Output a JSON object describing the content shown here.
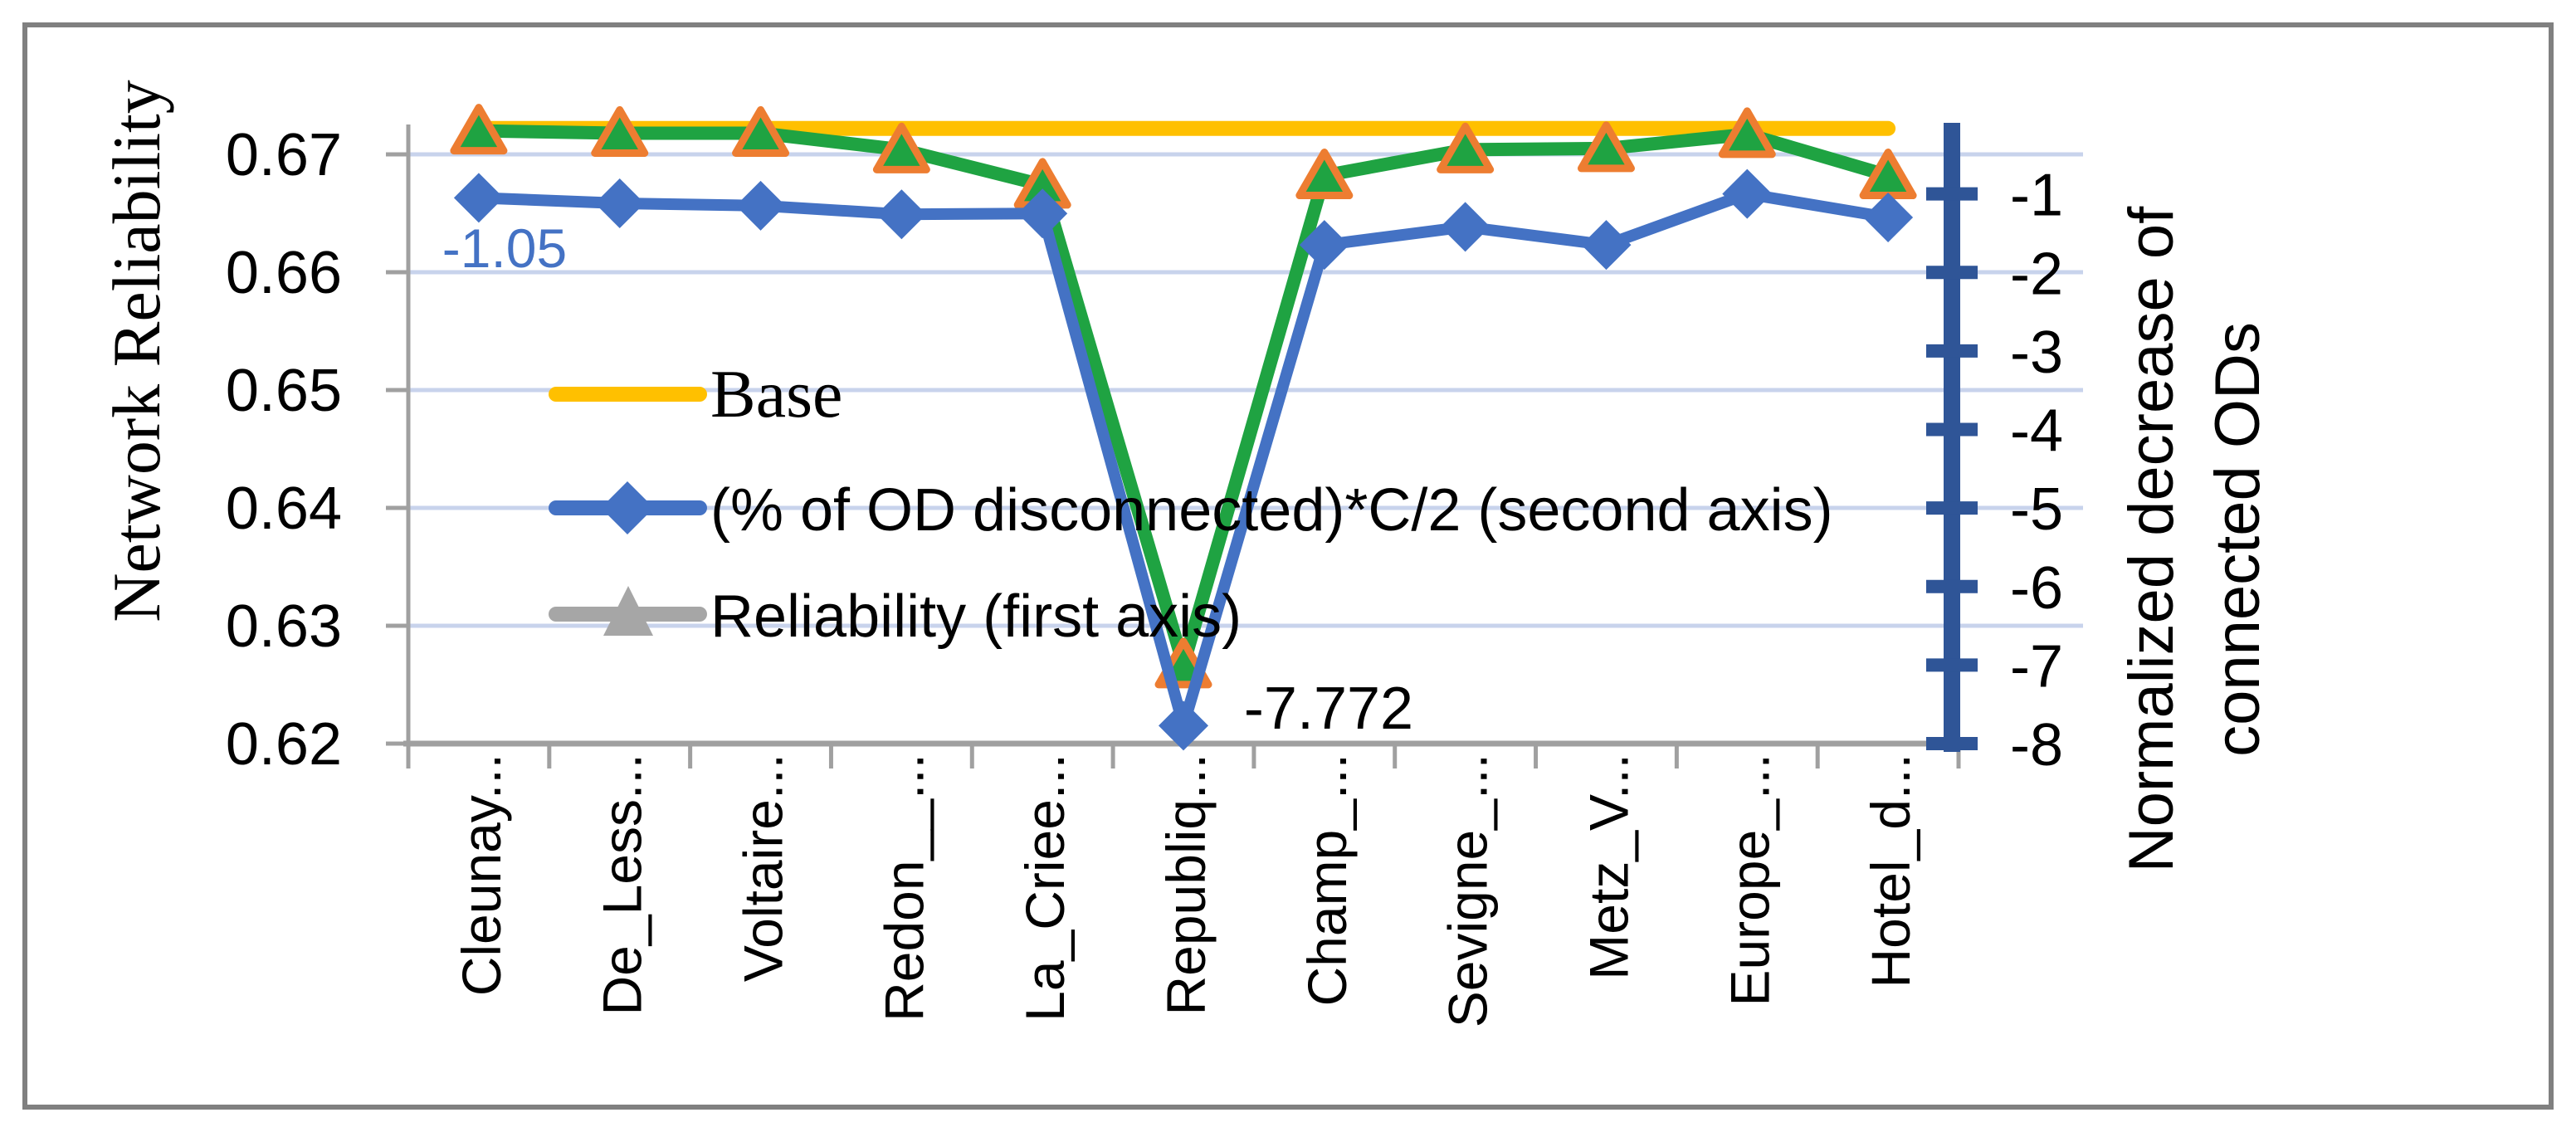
{
  "chart_data": {
    "type": "line",
    "title": "",
    "categories": [
      "Cleunay...",
      "De_Less...",
      "Voltaire...",
      "Redon__...",
      "La_Criee...",
      "Republiq...",
      "Champ_...",
      "Sevigne_...",
      "Metz_V...",
      "Europe_...",
      "Hotel_d..."
    ],
    "series": [
      {
        "name": "Base",
        "axis": "left",
        "color": "#FFC000",
        "marker": "none",
        "legend_color": "#FFC000",
        "values": [
          0.6722,
          0.6722,
          0.6722,
          0.6722,
          0.6722,
          0.6722,
          0.6722,
          0.6722,
          0.6722,
          0.6722,
          0.6722
        ]
      },
      {
        "name": "(% of OD disconnected)*C/2 (second axis)",
        "axis": "right",
        "color": "#4472C4",
        "marker": "diamond",
        "legend_color": "#4472C4",
        "values": [
          -1.05,
          -1.12,
          -1.15,
          -1.26,
          -1.25,
          -7.772,
          -1.65,
          -1.42,
          -1.65,
          -1.0,
          -1.3
        ]
      },
      {
        "name": "Reliability (first axis)",
        "axis": "left",
        "color": "#1FA342",
        "marker": "triangle",
        "marker_stroke": "#ED7D31",
        "legend_color": "#A6A6A6",
        "values": [
          0.672,
          0.6718,
          0.6718,
          0.6704,
          0.6674,
          0.6267,
          0.6682,
          0.6704,
          0.6705,
          0.6717,
          0.6682
        ]
      }
    ],
    "left_axis": {
      "title": "Network Reliability",
      "min": 0.62,
      "max": 0.6733,
      "tick_labels": [
        "0.67",
        "0.66",
        "0.65",
        "0.64",
        "0.63",
        "0.62"
      ],
      "tick_values": [
        0.67,
        0.66,
        0.65,
        0.64,
        0.63,
        0.62
      ],
      "gridline_values": [
        0.67,
        0.66,
        0.65,
        0.64,
        0.63
      ]
    },
    "right_axis": {
      "title_line1": "Normalized decrease of",
      "title_line2": "connected ODs",
      "min": -8,
      "max": 0,
      "tick_labels": [
        "-1",
        "-2",
        "-3",
        "-4",
        "-5",
        "-6",
        "-7",
        "-8"
      ],
      "tick_values": [
        -1,
        -2,
        -3,
        -4,
        -5,
        -6,
        -7,
        -8
      ]
    },
    "data_labels": [
      {
        "text": "-1.05",
        "series": 1,
        "point": 0,
        "color": "#4472C4"
      },
      {
        "text": "-7.772",
        "series": 1,
        "point": 5,
        "color": "#000000"
      }
    ],
    "legend": {
      "position": "overlay-left",
      "entries": [
        "Base",
        "(% of OD disconnected)*C/2 (second axis)",
        "Reliability (first axis)"
      ]
    },
    "grid": true
  },
  "colors": {
    "background": "#ffffff",
    "figure_border": "#808080",
    "gridline": "#C8D3EC",
    "axis_line": "#A0A0A0",
    "right_axis_line": "#2F5597",
    "tick_label": "#000000",
    "blue_series": "#4472C4",
    "green_series": "#1FA342",
    "yellow_series": "#FFC000",
    "triangle_border": "#ED7D31",
    "legend_gray": "#A6A6A6"
  }
}
